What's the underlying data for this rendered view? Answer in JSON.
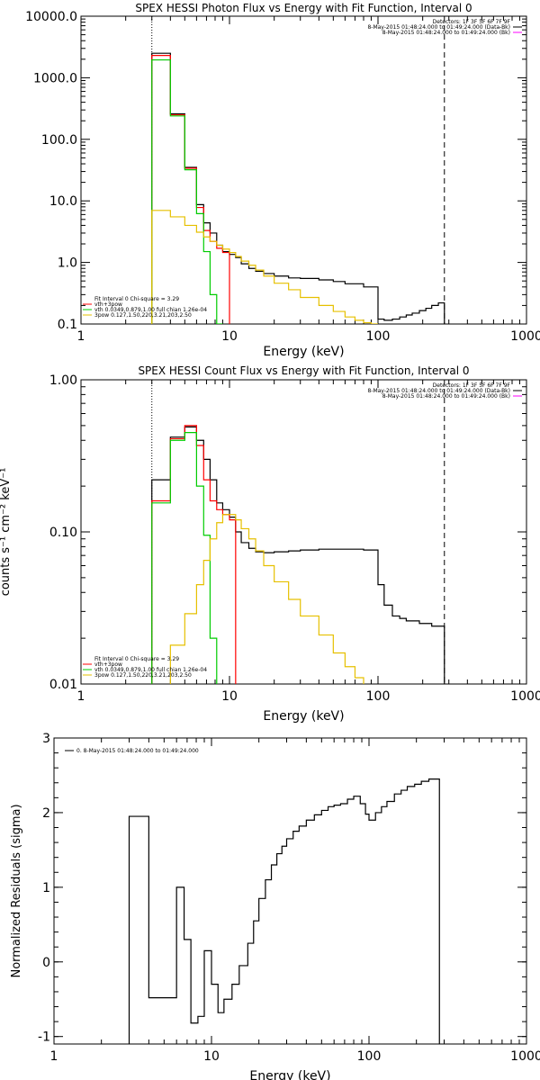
{
  "chart_data": [
    {
      "type": "line",
      "title": "SPEX HESSI Photon Flux vs Energy with Fit Function, Interval 0",
      "xlabel": "Energy (keV)",
      "ylabel": "",
      "xscale": "log",
      "yscale": "log",
      "xlim": [
        1,
        1000
      ],
      "ylim": [
        0.1,
        10000
      ],
      "x_ticks": [
        1,
        10,
        100,
        1000
      ],
      "x_tick_labels": [
        "1",
        "10",
        "100",
        "1000"
      ],
      "y_ticks": [
        0.1,
        1,
        10,
        100,
        1000,
        10000
      ],
      "y_tick_labels": [
        "0.1",
        "1.0",
        "10.0",
        "100.0",
        "1000.0",
        "10000.0"
      ],
      "vlines": [
        {
          "x": 3,
          "style": "dotted"
        },
        {
          "x": 280,
          "style": "dashed"
        }
      ],
      "legend_top_right": [
        {
          "text": "Detectors: 1F 3F 5F 6F 7F 9F",
          "color": ""
        },
        {
          "text": "8-May-2015 01:48:24.000 to 01:49:24.000 (Data-Bk)",
          "color": "#000000"
        },
        {
          "text": "8-May-2015 01:48:24.000 to 01:49:24.000 (Bk)",
          "color": "#ff00ff"
        }
      ],
      "legend_bottom_left": [
        {
          "text": "Fit Interval 0   Chi-square = 3.29",
          "color": ""
        },
        {
          "text": "vth+3pow",
          "color": "#ff0000"
        },
        {
          "text": "vth 0.0349,0.879,1.00  full chian 1.26e-04",
          "color": "#00cc00"
        },
        {
          "text": "3pow 0.127,1.50,220,3.21,203,2.50",
          "color": "#e6c000"
        }
      ],
      "series": [
        {
          "color": "#000000",
          "edges": [
            3,
            4,
            5,
            6,
            6.7,
            7.4,
            8.2,
            9,
            10,
            11,
            12,
            13.5,
            15,
            17,
            20,
            25,
            30,
            40,
            50,
            60,
            80,
            100,
            110,
            125,
            140,
            155,
            170,
            190,
            210,
            230,
            255,
            280
          ],
          "values": [
            2500,
            260,
            35,
            8.7,
            4.4,
            3.0,
            1.9,
            1.5,
            1.35,
            1.2,
            0.95,
            0.8,
            0.72,
            0.66,
            0.6,
            0.56,
            0.55,
            0.52,
            0.49,
            0.45,
            0.4,
            0.12,
            0.115,
            0.12,
            0.13,
            0.14,
            0.15,
            0.165,
            0.18,
            0.2,
            0.22
          ]
        },
        {
          "color": "#ff0000",
          "edges": [
            3,
            4,
            5,
            6,
            6.7,
            7.4,
            8.2,
            9,
            10
          ],
          "values": [
            2300,
            250,
            34,
            7.8,
            3.3,
            2.2,
            1.7,
            1.45
          ]
        },
        {
          "color": "#00cc00",
          "edges": [
            3,
            4,
            5,
            6,
            6.7,
            7.4,
            8.2,
            9
          ],
          "values": [
            1950,
            240,
            32,
            6.2,
            1.5,
            0.3,
            0.1
          ]
        },
        {
          "color": "#e6c000",
          "edges": [
            3,
            4,
            5,
            6,
            6.7,
            7.4,
            8.2,
            9,
            10,
            11,
            12,
            13.5,
            15,
            17,
            20,
            25,
            30,
            40,
            50,
            60,
            70,
            80,
            90,
            100
          ],
          "values": [
            7,
            5.5,
            4.0,
            3.1,
            2.6,
            2.2,
            1.9,
            1.65,
            1.45,
            1.25,
            1.05,
            0.9,
            0.75,
            0.6,
            0.46,
            0.36,
            0.27,
            0.2,
            0.16,
            0.13,
            0.115,
            0.105,
            0.1
          ]
        }
      ]
    },
    {
      "type": "line",
      "title": "SPEX HESSI Count Flux vs Energy with Fit Function, Interval 0",
      "xlabel": "Energy (keV)",
      "ylabel": "counts s⁻¹ cm⁻² keV⁻¹",
      "xscale": "log",
      "yscale": "log",
      "xlim": [
        1,
        1000
      ],
      "ylim": [
        0.01,
        1
      ],
      "x_ticks": [
        1,
        10,
        100,
        1000
      ],
      "x_tick_labels": [
        "1",
        "10",
        "100",
        "1000"
      ],
      "y_ticks": [
        0.01,
        0.1,
        1
      ],
      "y_tick_labels": [
        "0.01",
        "0.10",
        "1.00"
      ],
      "vlines": [
        {
          "x": 3,
          "style": "dotted"
        },
        {
          "x": 280,
          "style": "dashed"
        }
      ],
      "legend_top_right": [
        {
          "text": "Detectors: 1F 3F 5F 6F 7F 9F",
          "color": ""
        },
        {
          "text": "8-May-2015 01:48:24.000 to 01:49:24.000 (Data-Bk)",
          "color": "#000000"
        },
        {
          "text": "8-May-2015 01:48:24.000 to 01:49:24.000 (Bk)",
          "color": "#ff00ff"
        }
      ],
      "legend_bottom_left": [
        {
          "text": "Fit Interval 0   Chi-square = 3.29",
          "color": ""
        },
        {
          "text": "vth+3pow",
          "color": "#ff0000"
        },
        {
          "text": "vth 0.0349,0.879,1.00  full chian 1.26e-04",
          "color": "#00cc00"
        },
        {
          "text": "3pow 0.127,1.50,220,3.21,203,2.50",
          "color": "#e6c000"
        }
      ],
      "series": [
        {
          "color": "#000000",
          "edges": [
            3,
            4,
            5,
            6,
            6.7,
            7.4,
            8.2,
            9,
            10,
            11,
            12,
            13.5,
            15,
            17,
            20,
            25,
            30,
            40,
            50,
            60,
            80,
            100,
            110,
            125,
            140,
            155,
            170,
            190,
            210,
            230,
            255,
            280
          ],
          "values": [
            0.22,
            0.42,
            0.49,
            0.4,
            0.3,
            0.22,
            0.155,
            0.14,
            0.125,
            0.1,
            0.085,
            0.078,
            0.074,
            0.073,
            0.074,
            0.075,
            0.076,
            0.077,
            0.077,
            0.077,
            0.076,
            0.045,
            0.033,
            0.028,
            0.027,
            0.026,
            0.026,
            0.025,
            0.025,
            0.024,
            0.024
          ]
        },
        {
          "color": "#ff0000",
          "edges": [
            3,
            4,
            5,
            6,
            6.7,
            7.4,
            8.2,
            9,
            10,
            11
          ],
          "values": [
            0.16,
            0.41,
            0.5,
            0.37,
            0.22,
            0.16,
            0.14,
            0.13,
            0.12
          ]
        },
        {
          "color": "#00cc00",
          "edges": [
            3,
            4,
            5,
            6,
            6.7,
            7.4,
            8.2,
            9
          ],
          "values": [
            0.155,
            0.4,
            0.45,
            0.2,
            0.095,
            0.02,
            0.008
          ]
        },
        {
          "color": "#e6c000",
          "edges": [
            3,
            4,
            5,
            6,
            6.7,
            7.4,
            8.2,
            9,
            10,
            11,
            12,
            13.5,
            15,
            17,
            20,
            25,
            30,
            40,
            50,
            60,
            70,
            80,
            90,
            100
          ],
          "values": [
            0.008,
            0.018,
            0.029,
            0.045,
            0.065,
            0.09,
            0.115,
            0.13,
            0.13,
            0.12,
            0.105,
            0.09,
            0.075,
            0.06,
            0.047,
            0.036,
            0.028,
            0.021,
            0.016,
            0.013,
            0.011,
            0.0095,
            0.008
          ]
        }
      ]
    },
    {
      "type": "line",
      "title": "",
      "xlabel": "Energy (keV)",
      "ylabel": "Normalized Residuals (sigma)",
      "xscale": "log",
      "yscale": "linear",
      "xlim": [
        1,
        1000
      ],
      "ylim": [
        -1.1,
        3
      ],
      "x_ticks": [
        1,
        10,
        100,
        1000
      ],
      "x_tick_labels": [
        "1",
        "10",
        "100",
        "1000"
      ],
      "y_ticks": [
        -1,
        0,
        1,
        2,
        3
      ],
      "y_tick_labels": [
        "-1",
        "0",
        "1",
        "2",
        "3"
      ],
      "legend_top_left": [
        {
          "text": "0. 8-May-2015 01:48:24.000 to 01:49:24.000",
          "color": "#000000"
        }
      ],
      "series": [
        {
          "color": "#000000",
          "edges": [
            3,
            4,
            5,
            6,
            6.7,
            7.4,
            8.2,
            9,
            10,
            11,
            12,
            13.5,
            15,
            17,
            18.5,
            20,
            22,
            24,
            26,
            28,
            30,
            33,
            36,
            40,
            45,
            50,
            55,
            60,
            66,
            73,
            80,
            88,
            95,
            100,
            110,
            120,
            130,
            145,
            160,
            175,
            195,
            215,
            240,
            255,
            280
          ],
          "values": [
            1.95,
            -0.48,
            -0.48,
            1.0,
            0.3,
            -0.82,
            -0.73,
            0.15,
            -0.3,
            -0.68,
            -0.5,
            -0.3,
            -0.05,
            0.25,
            0.55,
            0.85,
            1.1,
            1.3,
            1.45,
            1.55,
            1.65,
            1.75,
            1.82,
            1.9,
            1.97,
            2.03,
            2.08,
            2.1,
            2.12,
            2.18,
            2.22,
            2.12,
            1.98,
            1.9,
            2.0,
            2.08,
            2.15,
            2.25,
            2.3,
            2.35,
            2.38,
            2.42,
            2.45,
            2.45
          ]
        }
      ]
    }
  ]
}
